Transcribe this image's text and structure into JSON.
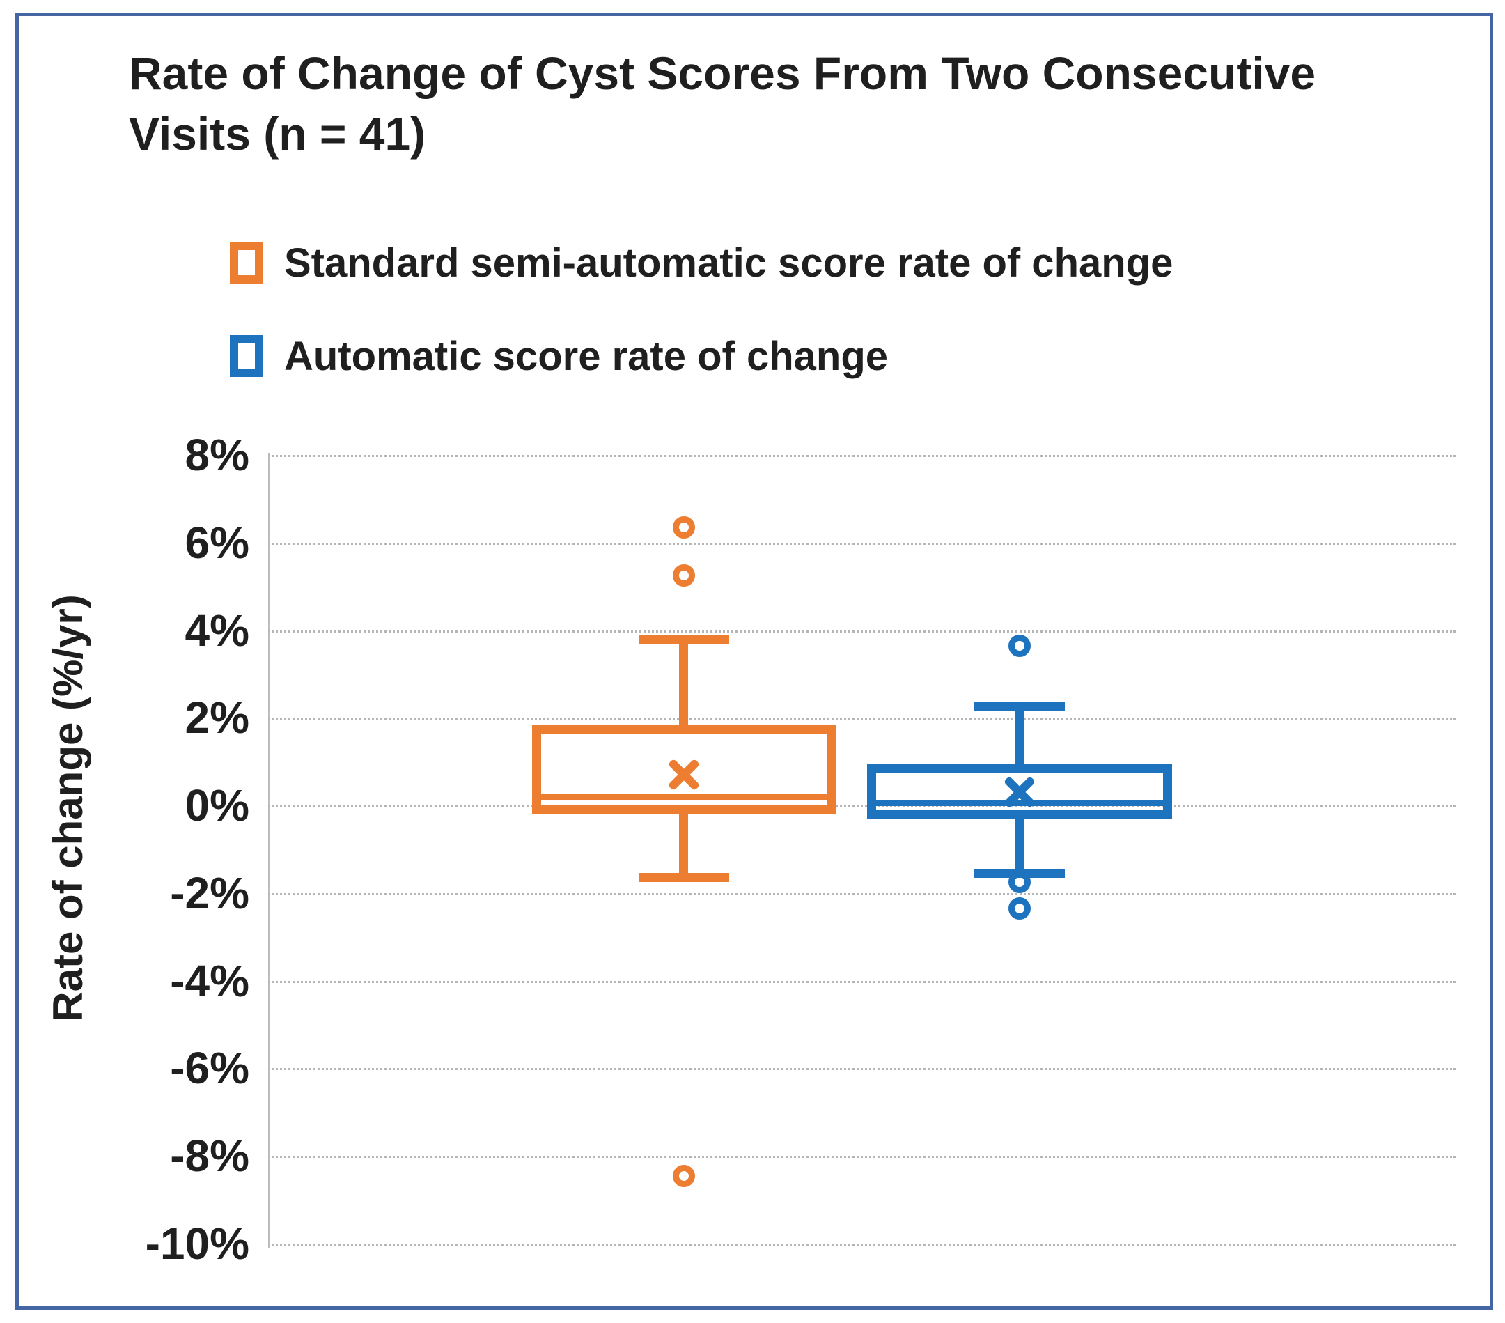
{
  "figure": {
    "title": "Rate of Change of Cyst Scores From Two Consecutive Visits (n = 41)",
    "border_color": "#4466a3"
  },
  "legend": {
    "position": "top-left",
    "items": [
      {
        "label": "Standard semi-automatic score rate of change",
        "color": "#ED7D31"
      },
      {
        "label": "Automatic score rate of change",
        "color": "#1E73BE"
      }
    ]
  },
  "chart_data": {
    "type": "boxplot",
    "title": "Rate of Change of Cyst Scores From Two Consecutive Visits (n = 41)",
    "ylabel": "Rate of change (%/yr)",
    "units": "%",
    "ylim": [
      -10,
      8
    ],
    "ytick_step": 2,
    "ytick_labels": [
      "8%",
      "6%",
      "4%",
      "2%",
      "0%",
      "-2%",
      "-4%",
      "-6%",
      "-8%",
      "-10%"
    ],
    "grid": "horizontal dotted gray lines",
    "gridline_color": "#b5b5b5",
    "series": [
      {
        "name": "Standard semi-automatic score rate of change",
        "color": "#ED7D31",
        "whisker_high": 3.8,
        "q3": 1.75,
        "mean": 0.7,
        "median": 0.2,
        "q1": -0.1,
        "whisker_low": -1.65,
        "outliers": [
          6.35,
          5.25,
          -8.45
        ],
        "x_center_frac": 0.35,
        "box_width_frac": 0.256,
        "cap_width_frac": 0.0763
      },
      {
        "name": "Automatic score rate of change",
        "color": "#1E73BE",
        "whisker_high": 2.25,
        "q3": 0.85,
        "mean": 0.3,
        "median": 0.05,
        "q1": -0.2,
        "whisker_low": -1.55,
        "outliers": [
          3.65,
          -1.75,
          -2.35
        ],
        "x_center_frac": 0.633,
        "box_width_frac": 0.257,
        "cap_width_frac": 0.0763
      }
    ]
  }
}
